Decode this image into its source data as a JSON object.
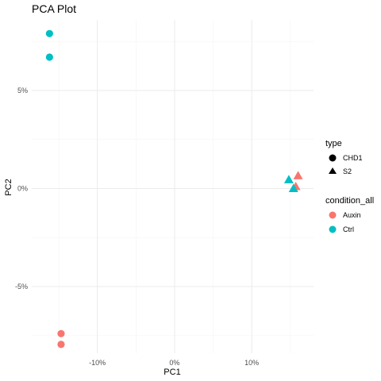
{
  "chart_data": {
    "type": "scatter",
    "title": "PCA Plot",
    "xlabel": "PC1",
    "ylabel": "PC2",
    "xlim": [
      -18.5,
      18
    ],
    "ylim": [
      -8.4,
      8.6
    ],
    "x_ticks": [
      {
        "value": -10,
        "label": "-10%"
      },
      {
        "value": 0,
        "label": "0%"
      },
      {
        "value": 10,
        "label": "10%"
      }
    ],
    "y_ticks": [
      {
        "value": 5,
        "label": "5%"
      },
      {
        "value": 0,
        "label": "0%"
      },
      {
        "value": -5,
        "label": "-5%"
      }
    ],
    "grid": true,
    "legend_position": "right",
    "colors": {
      "Auxin": "#F8766D",
      "Ctrl": "#00BFC4"
    },
    "legend": {
      "shape": {
        "title": "type",
        "items": [
          {
            "label": "CHD1",
            "shape": "circle"
          },
          {
            "label": "S2",
            "shape": "triangle"
          }
        ]
      },
      "color": {
        "title": "condition_all",
        "items": [
          {
            "label": "Auxin",
            "color": "#F8766D"
          },
          {
            "label": "Ctrl",
            "color": "#00BFC4"
          }
        ]
      }
    },
    "points": [
      {
        "x": -16.2,
        "y": 7.9,
        "condition": "Ctrl",
        "type": "CHD1"
      },
      {
        "x": -16.2,
        "y": 6.7,
        "condition": "Ctrl",
        "type": "CHD1"
      },
      {
        "x": -14.7,
        "y": -7.4,
        "condition": "Auxin",
        "type": "CHD1"
      },
      {
        "x": -14.7,
        "y": -7.95,
        "condition": "Auxin",
        "type": "CHD1"
      },
      {
        "x": 14.8,
        "y": 0.45,
        "condition": "Ctrl",
        "type": "S2"
      },
      {
        "x": 16.0,
        "y": 0.65,
        "condition": "Auxin",
        "type": "S2"
      },
      {
        "x": 15.7,
        "y": 0.1,
        "condition": "Auxin",
        "type": "S2"
      },
      {
        "x": 15.4,
        "y": 0.0,
        "condition": "Ctrl",
        "type": "S2"
      }
    ]
  }
}
